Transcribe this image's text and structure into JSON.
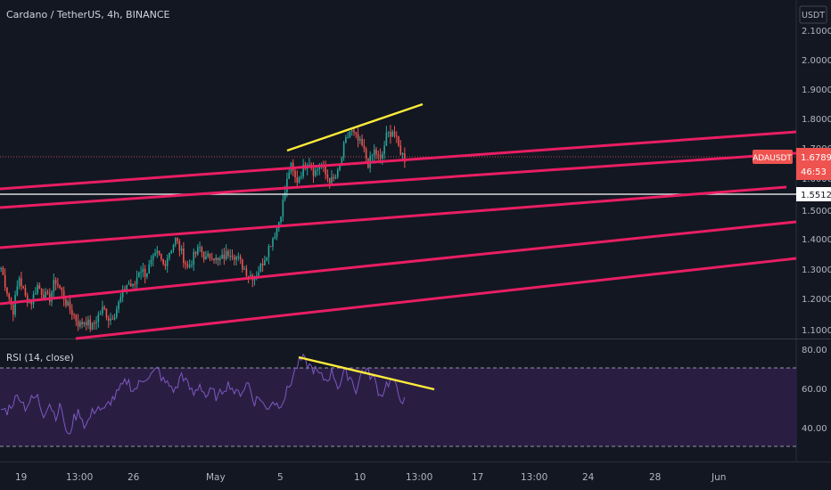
{
  "chart": {
    "title": "Cardano / TetherUS, 4h, BINANCE",
    "currency_button": "USDT",
    "price_labels": [
      "2.1000",
      "2.0000",
      "1.9000",
      "1.8000",
      "1.7000",
      "1.6000",
      "1.5000",
      "1.4000",
      "1.3000",
      "1.2000",
      "1.1000"
    ],
    "symbol_badge": "ADAUSDT",
    "last_price": "1.6789",
    "countdown": "46:53",
    "horizontal_line_price": "1.5512",
    "colors": {
      "background": "#131722",
      "up_candle": "#26a69a",
      "down_candle": "#ef5350",
      "channel_lines": "#e91e63",
      "divergence_lines": "#ffeb3b",
      "rsi_line": "#7e57c2",
      "rsi_band": "#2a1f45"
    }
  },
  "rsi": {
    "title": "RSI (14, close)",
    "levels": [
      "80.00",
      "60.00",
      "40.00"
    ]
  },
  "time_axis": {
    "labels": [
      "19",
      "13:00",
      "26",
      "May",
      "5",
      "10",
      "13:00",
      "17",
      "13:00",
      "24",
      "28",
      "Jun"
    ]
  },
  "chart_data": {
    "type": "candlestick",
    "symbol": "ADAUSDT",
    "ylim": [
      1.07,
      2.14
    ],
    "rsi_ylim": [
      20,
      85
    ],
    "rsi_levels": [
      70,
      30
    ],
    "price_path": [
      1.3,
      1.22,
      1.15,
      1.27,
      1.2,
      1.18,
      1.24,
      1.21,
      1.19,
      1.26,
      1.22,
      1.17,
      1.14,
      1.1,
      1.12,
      1.09,
      1.13,
      1.16,
      1.12,
      1.15,
      1.2,
      1.25,
      1.23,
      1.3,
      1.28,
      1.32,
      1.35,
      1.31,
      1.36,
      1.4,
      1.35,
      1.3,
      1.34,
      1.37,
      1.33,
      1.35,
      1.32,
      1.34,
      1.36,
      1.34,
      1.31,
      1.28,
      1.27,
      1.3,
      1.35,
      1.4,
      1.45,
      1.55,
      1.66,
      1.6,
      1.64,
      1.68,
      1.63,
      1.66,
      1.62,
      1.6,
      1.63,
      1.73,
      1.78,
      1.75,
      1.72,
      1.66,
      1.71,
      1.67,
      1.76,
      1.78,
      1.72,
      1.68
    ],
    "rsi_path": [
      48,
      47,
      52,
      56,
      49,
      53,
      55,
      45,
      52,
      44,
      50,
      31,
      42,
      47,
      38,
      45,
      50,
      46,
      52,
      55,
      60,
      64,
      58,
      62,
      66,
      67,
      70,
      63,
      61,
      58,
      68,
      61,
      56,
      62,
      55,
      58,
      54,
      60,
      62,
      56,
      58,
      63,
      52,
      55,
      47,
      53,
      50,
      54,
      62,
      71,
      76,
      72,
      70,
      66,
      64,
      69,
      60,
      68,
      66,
      58,
      70,
      68,
      64,
      55,
      62,
      64,
      56,
      52
    ]
  }
}
